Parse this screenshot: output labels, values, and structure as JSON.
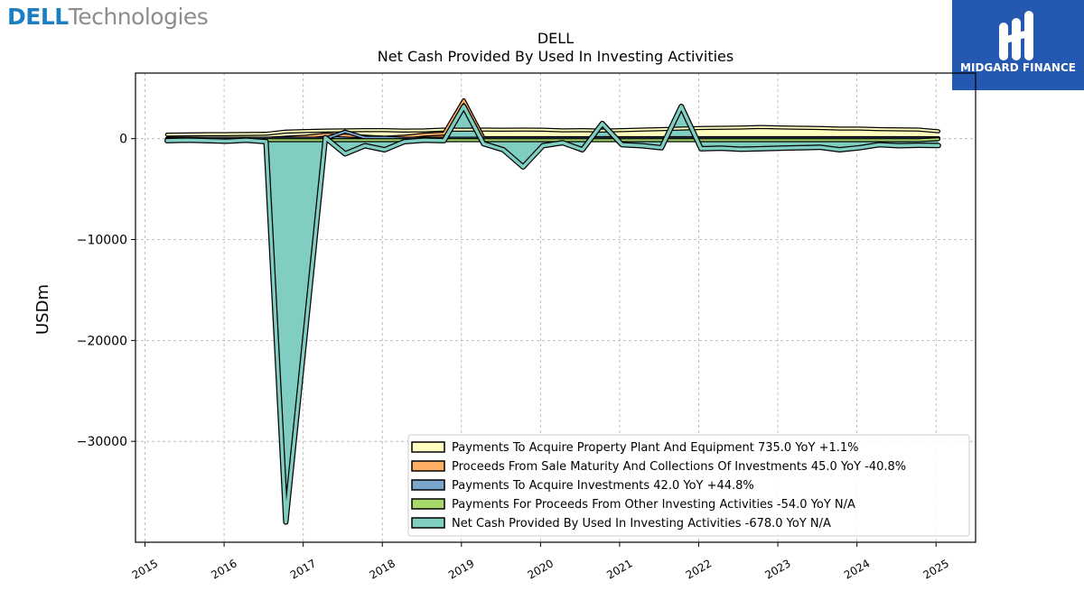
{
  "brand": {
    "name_bold": "DELL",
    "name_light": "Technologies",
    "accent_color": "#1c7ec2"
  },
  "badge": {
    "text": "MIDGARD FINANCE",
    "color": "#2558b0",
    "icon": "midgard-logo-icon"
  },
  "chart_data": {
    "type": "area",
    "title": "DELL",
    "subtitle": "Net Cash Provided By Used In Investing Activities",
    "xlabel": "",
    "ylabel": "USDm",
    "xlim": [
      2014.88,
      2025.5
    ],
    "ylim": [
      -40000,
      6500
    ],
    "x_ticks": [
      2015,
      2016,
      2017,
      2018,
      2019,
      2020,
      2021,
      2022,
      2023,
      2024,
      2025
    ],
    "y_ticks": [
      0,
      -10000,
      -20000,
      -30000
    ],
    "y_tick_labels": [
      "0",
      "−10000",
      "−20000",
      "−30000"
    ],
    "grid": true,
    "legend_position": "lower-right",
    "x": [
      2015.28,
      2015.53,
      2015.78,
      2016.03,
      2016.28,
      2016.53,
      2016.78,
      2017.03,
      2017.28,
      2017.53,
      2017.78,
      2018.03,
      2018.28,
      2018.53,
      2018.78,
      2019.03,
      2019.28,
      2019.53,
      2019.78,
      2020.03,
      2020.28,
      2020.53,
      2020.78,
      2021.03,
      2021.28,
      2021.53,
      2021.78,
      2022.03,
      2022.28,
      2022.53,
      2022.78,
      2023.03,
      2023.28,
      2023.53,
      2023.78,
      2024.03,
      2024.28,
      2024.53,
      2024.78,
      2025.03
    ],
    "series": [
      {
        "name": "Payments To Acquire Property Plant And Equipment",
        "legend": "Payments To Acquire Property Plant And Equipment  735.0 YoY +1.1%",
        "color": "#ffffbf",
        "values": [
          400,
          420,
          440,
          450,
          460,
          480,
          700,
          750,
          800,
          820,
          850,
          850,
          800,
          820,
          900,
          880,
          900,
          880,
          900,
          880,
          820,
          850,
          800,
          850,
          900,
          950,
          1000,
          1050,
          1080,
          1100,
          1150,
          1120,
          1080,
          1050,
          1000,
          1000,
          950,
          920,
          900,
          735
        ]
      },
      {
        "name": "Proceeds From Sale Maturity And Collections Of Investments",
        "legend": "Proceeds From Sale Maturity And Collections Of Investments  45.0 YoY -40.8%",
        "color": "#fdae61",
        "values": [
          0,
          0,
          0,
          0,
          0,
          0,
          100,
          200,
          400,
          300,
          200,
          100,
          200,
          400,
          500,
          3800,
          50,
          50,
          50,
          50,
          50,
          50,
          50,
          50,
          50,
          50,
          50,
          50,
          50,
          50,
          50,
          50,
          50,
          50,
          50,
          50,
          50,
          50,
          50,
          45
        ]
      },
      {
        "name": "Payments To Acquire Investments",
        "legend": "Payments To Acquire Investments  42.0 YoY +44.8%",
        "color": "#7aa6cc",
        "values": [
          0,
          0,
          0,
          0,
          0,
          0,
          0,
          0,
          0,
          700,
          100,
          100,
          0,
          0,
          0,
          0,
          0,
          0,
          0,
          0,
          0,
          0,
          0,
          0,
          0,
          0,
          0,
          0,
          0,
          0,
          0,
          0,
          0,
          0,
          0,
          0,
          0,
          0,
          0,
          42
        ]
      },
      {
        "name": "Payments For Proceeds From Other Investing Activities",
        "legend": "Payments For Proceeds From Other Investing Activities  -54.0 YoY N/A",
        "color": "#a6d96a",
        "values": [
          -100,
          -150,
          -150,
          -150,
          -150,
          -150,
          -150,
          -150,
          -150,
          -150,
          -150,
          -150,
          -150,
          -150,
          -150,
          -150,
          -150,
          -150,
          -150,
          -150,
          -150,
          -150,
          -150,
          -150,
          -150,
          -150,
          -150,
          -150,
          -150,
          -150,
          -150,
          -150,
          -150,
          -150,
          -150,
          -150,
          -150,
          -150,
          -150,
          -54
        ]
      },
      {
        "name": "Net Cash Provided By Used In Investing Activities",
        "legend": "Net Cash Provided By Used In Investing Activities  -678.0 YoY N/A",
        "color": "#80cdc1",
        "values": [
          -200,
          -150,
          -200,
          -250,
          -150,
          -300,
          -38000,
          -19000,
          100,
          -1500,
          -700,
          -1100,
          -300,
          -150,
          -200,
          3200,
          -500,
          -1100,
          -2800,
          -700,
          -400,
          -1100,
          1500,
          -600,
          -700,
          -900,
          3200,
          -1000,
          -950,
          -1050,
          -1000,
          -950,
          -900,
          -850,
          -1100,
          -900,
          -600,
          -700,
          -650,
          -678
        ]
      }
    ]
  }
}
